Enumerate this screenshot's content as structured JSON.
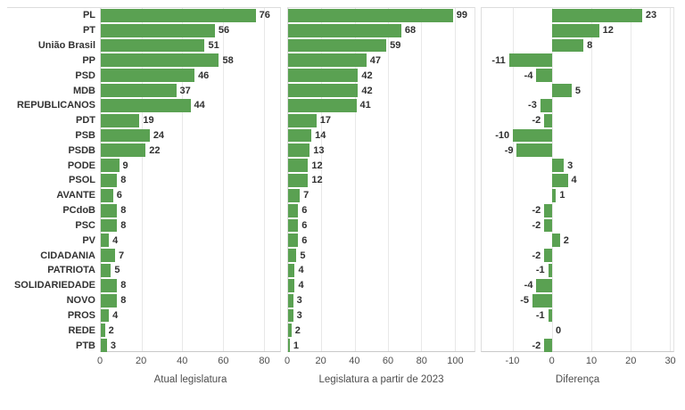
{
  "chart_data": {
    "type": "bar",
    "orientation": "horizontal",
    "grid": true,
    "legend": false,
    "bar_color": "#5aa152",
    "categories": [
      "PL",
      "PT",
      "União Brasil",
      "PP",
      "PSD",
      "MDB",
      "REPUBLICANOS",
      "PDT",
      "PSB",
      "PSDB",
      "PODE",
      "PSOL",
      "AVANTE",
      "PCdoB",
      "PSC",
      "PV",
      "CIDADANIA",
      "PATRIOTA",
      "SOLIDARIEDADE",
      "NOVO",
      "PROS",
      "REDE",
      "PTB"
    ],
    "panels": [
      {
        "title": "Atual legislatura",
        "values": [
          76,
          56,
          51,
          58,
          46,
          37,
          44,
          19,
          24,
          22,
          9,
          8,
          6,
          8,
          8,
          4,
          7,
          5,
          8,
          8,
          4,
          2,
          3
        ],
        "ticks": [
          0,
          20,
          40,
          60,
          80
        ],
        "domain": [
          0,
          88
        ]
      },
      {
        "title": "Legislatura a partir de 2023",
        "values": [
          99,
          68,
          59,
          47,
          42,
          42,
          41,
          17,
          14,
          13,
          12,
          12,
          7,
          6,
          6,
          6,
          5,
          4,
          4,
          3,
          3,
          2,
          1
        ],
        "ticks": [
          0,
          20,
          40,
          60,
          80,
          100
        ],
        "domain": [
          0,
          112
        ]
      },
      {
        "title": "Diferença",
        "values": [
          23,
          12,
          8,
          -11,
          -4,
          5,
          -3,
          -2,
          -10,
          -9,
          3,
          4,
          1,
          -2,
          -2,
          2,
          -2,
          -1,
          -4,
          -5,
          -1,
          0,
          -2
        ],
        "ticks": [
          -10,
          0,
          10,
          20,
          30
        ],
        "domain": [
          -18,
          31
        ]
      }
    ]
  }
}
